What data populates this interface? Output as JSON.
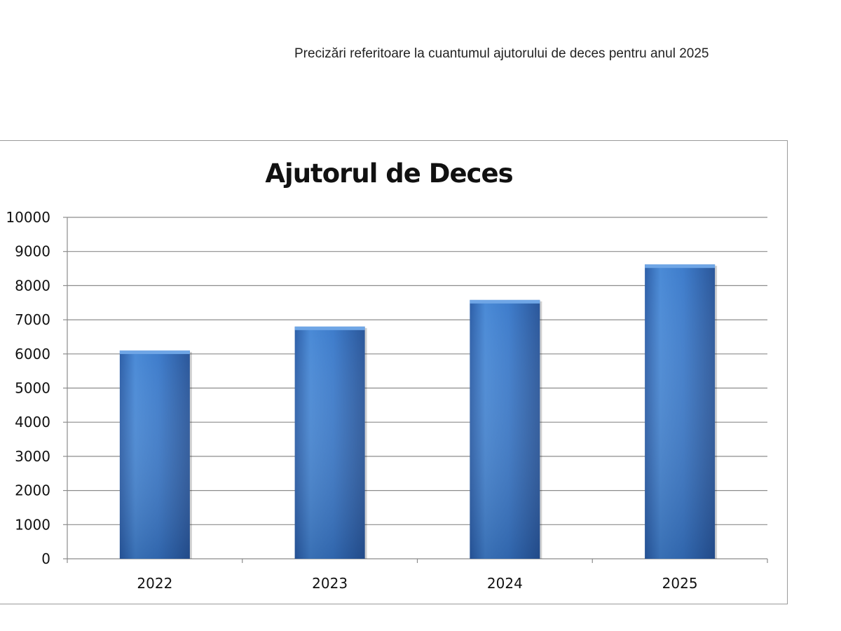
{
  "header": {
    "caption": "Precizări referitoare la cuantumul ajutorului de deces pentru anul 2025"
  },
  "chart_data": {
    "type": "bar",
    "title": "Ajutorul de Deces",
    "xlabel": "",
    "ylabel": "",
    "categories": [
      "2022",
      "2023",
      "2024",
      "2025"
    ],
    "values": [
      6100,
      6800,
      7580,
      8620
    ],
    "ylim": [
      0,
      10000
    ],
    "yticks": [
      0,
      1000,
      2000,
      3000,
      4000,
      5000,
      6000,
      7000,
      8000,
      9000,
      10000
    ],
    "grid": true,
    "legend": "none",
    "bar_color": "#3f7fcf"
  }
}
